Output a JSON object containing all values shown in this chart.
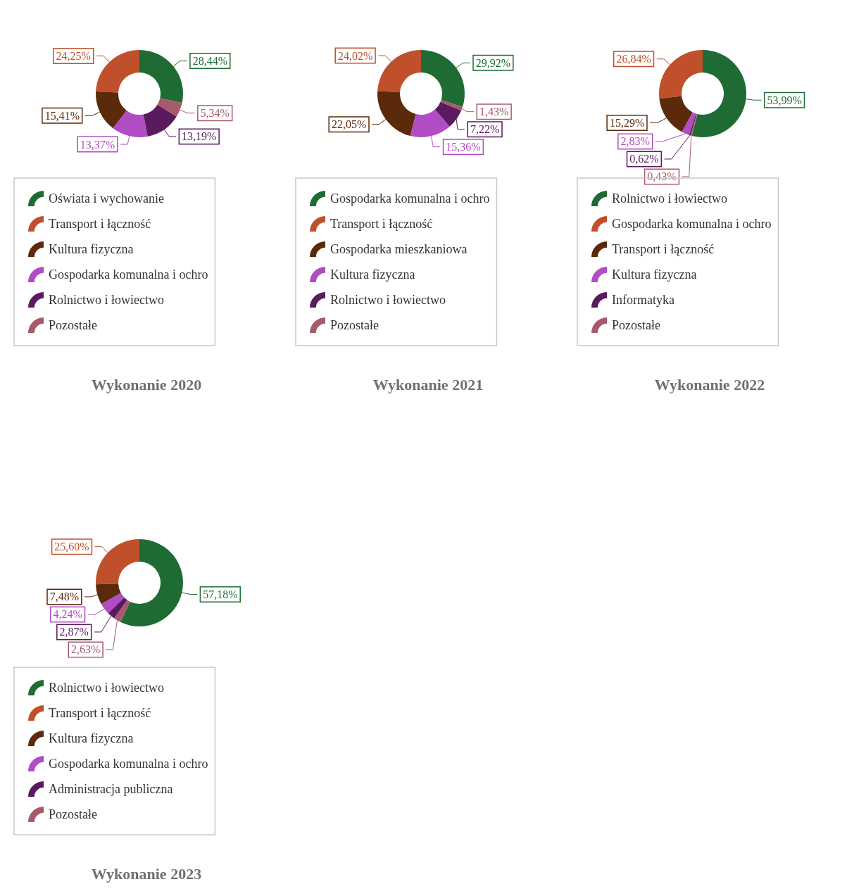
{
  "chart_data": [
    {
      "type": "donut",
      "title": "Wykonanie 2020",
      "legend": "bottom",
      "categories": [
        "Oświata i wychowanie",
        "Transport i łączność",
        "Kultura fizyczna",
        "Gospodarka komunalna i ochro",
        "Rolnictwo i łowiectwo",
        "Pozostałe"
      ],
      "values": [
        28.44,
        24.25,
        15.41,
        13.37,
        13.19,
        5.34
      ],
      "value_labels": [
        "28,44%",
        "24,25%",
        "15,41%",
        "13,37%",
        "13,19%",
        "5,34%"
      ],
      "colors": [
        "#1e6b34",
        "#c0502b",
        "#5a2a0a",
        "#b04cc4",
        "#5a1a5e",
        "#a85a6a"
      ]
    },
    {
      "type": "donut",
      "title": "Wykonanie 2021",
      "legend": "bottom",
      "categories": [
        "Gospodarka komunalna i ochro",
        "Transport i łączność",
        "Gospodarka mieszkaniowa",
        "Kultura fizyczna",
        "Rolnictwo i łowiectwo",
        "Pozostałe"
      ],
      "values": [
        29.92,
        24.02,
        22.05,
        15.36,
        7.22,
        1.43
      ],
      "value_labels": [
        "29,92%",
        "24,02%",
        "22,05%",
        "15,36%",
        "7,22%",
        "1,43%"
      ],
      "colors": [
        "#1e6b34",
        "#c0502b",
        "#5a2a0a",
        "#b04cc4",
        "#5a1a5e",
        "#a85a6a"
      ]
    },
    {
      "type": "donut",
      "title": "Wykonanie 2022",
      "legend": "bottom",
      "categories": [
        "Rolnictwo i łowiectwo",
        "Gospodarka komunalna i ochro",
        "Transport i łączność",
        "Kultura fizyczna",
        "Informatyka",
        "Pozostałe"
      ],
      "values": [
        53.99,
        26.84,
        15.29,
        2.83,
        0.62,
        0.43
      ],
      "value_labels": [
        "53,99%",
        "26,84%",
        "15,29%",
        "2,83%",
        "0,62%",
        "0,43%"
      ],
      "colors": [
        "#1e6b34",
        "#c0502b",
        "#5a2a0a",
        "#b04cc4",
        "#5a1a5e",
        "#a85a6a"
      ]
    },
    {
      "type": "donut",
      "title": "Wykonanie 2023",
      "legend": "bottom",
      "categories": [
        "Rolnictwo i łowiectwo",
        "Transport i łączność",
        "Kultura fizyczna",
        "Gospodarka komunalna i ochro",
        "Administracja publiczna",
        "Pozostałe"
      ],
      "values": [
        57.18,
        25.6,
        7.48,
        4.24,
        2.87,
        2.63
      ],
      "value_labels": [
        "57,18%",
        "25,60%",
        "7,48%",
        "4,24%",
        "2,87%",
        "2,63%"
      ],
      "colors": [
        "#1e6b34",
        "#c0502b",
        "#5a2a0a",
        "#b04cc4",
        "#5a1a5e",
        "#a85a6a"
      ]
    }
  ]
}
